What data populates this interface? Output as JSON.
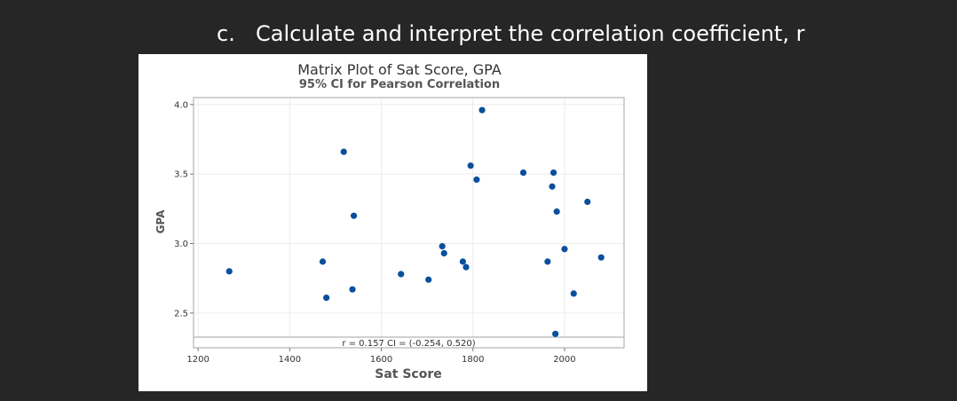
{
  "slide": {
    "item_letter": "c.",
    "heading": "Calculate and interpret the correlation coefficient, r"
  },
  "chart_data": {
    "type": "scatter",
    "title": "Matrix Plot of Sat Score, GPA",
    "subtitle": "95% CI for Pearson Correlation",
    "xlabel": "Sat Score",
    "ylabel": "GPA",
    "xlim": [
      1190,
      2130
    ],
    "ylim": [
      2.25,
      4.05
    ],
    "xticks": [
      1200,
      1400,
      1600,
      1800,
      2000
    ],
    "yticks": [
      2.5,
      3.0,
      3.5,
      4.0
    ],
    "xtick_labels": [
      "1200",
      "1400",
      "1600",
      "1800",
      "2000"
    ],
    "ytick_labels": [
      "2.5",
      "3.0",
      "3.5",
      "4.0"
    ],
    "grid": true,
    "annotation": "r = 0.157  CI = (-0.254, 0.520)",
    "marker_color": "#0a4f9c",
    "points": [
      {
        "x": 1268,
        "y": 2.8
      },
      {
        "x": 1472,
        "y": 2.87
      },
      {
        "x": 1480,
        "y": 2.61
      },
      {
        "x": 1518,
        "y": 3.66
      },
      {
        "x": 1537,
        "y": 2.67
      },
      {
        "x": 1540,
        "y": 3.2
      },
      {
        "x": 1643,
        "y": 2.78
      },
      {
        "x": 1703,
        "y": 2.74
      },
      {
        "x": 1733,
        "y": 2.98
      },
      {
        "x": 1737,
        "y": 2.93
      },
      {
        "x": 1778,
        "y": 2.87
      },
      {
        "x": 1785,
        "y": 2.83
      },
      {
        "x": 1795,
        "y": 3.56
      },
      {
        "x": 1808,
        "y": 3.46
      },
      {
        "x": 1820,
        "y": 3.96
      },
      {
        "x": 1910,
        "y": 3.51
      },
      {
        "x": 1963,
        "y": 2.87
      },
      {
        "x": 1973,
        "y": 3.41
      },
      {
        "x": 1976,
        "y": 3.51
      },
      {
        "x": 1980,
        "y": 2.35
      },
      {
        "x": 1983,
        "y": 3.23
      },
      {
        "x": 2000,
        "y": 2.96
      },
      {
        "x": 2020,
        "y": 2.64
      },
      {
        "x": 2050,
        "y": 3.3
      },
      {
        "x": 2080,
        "y": 2.9
      }
    ]
  }
}
